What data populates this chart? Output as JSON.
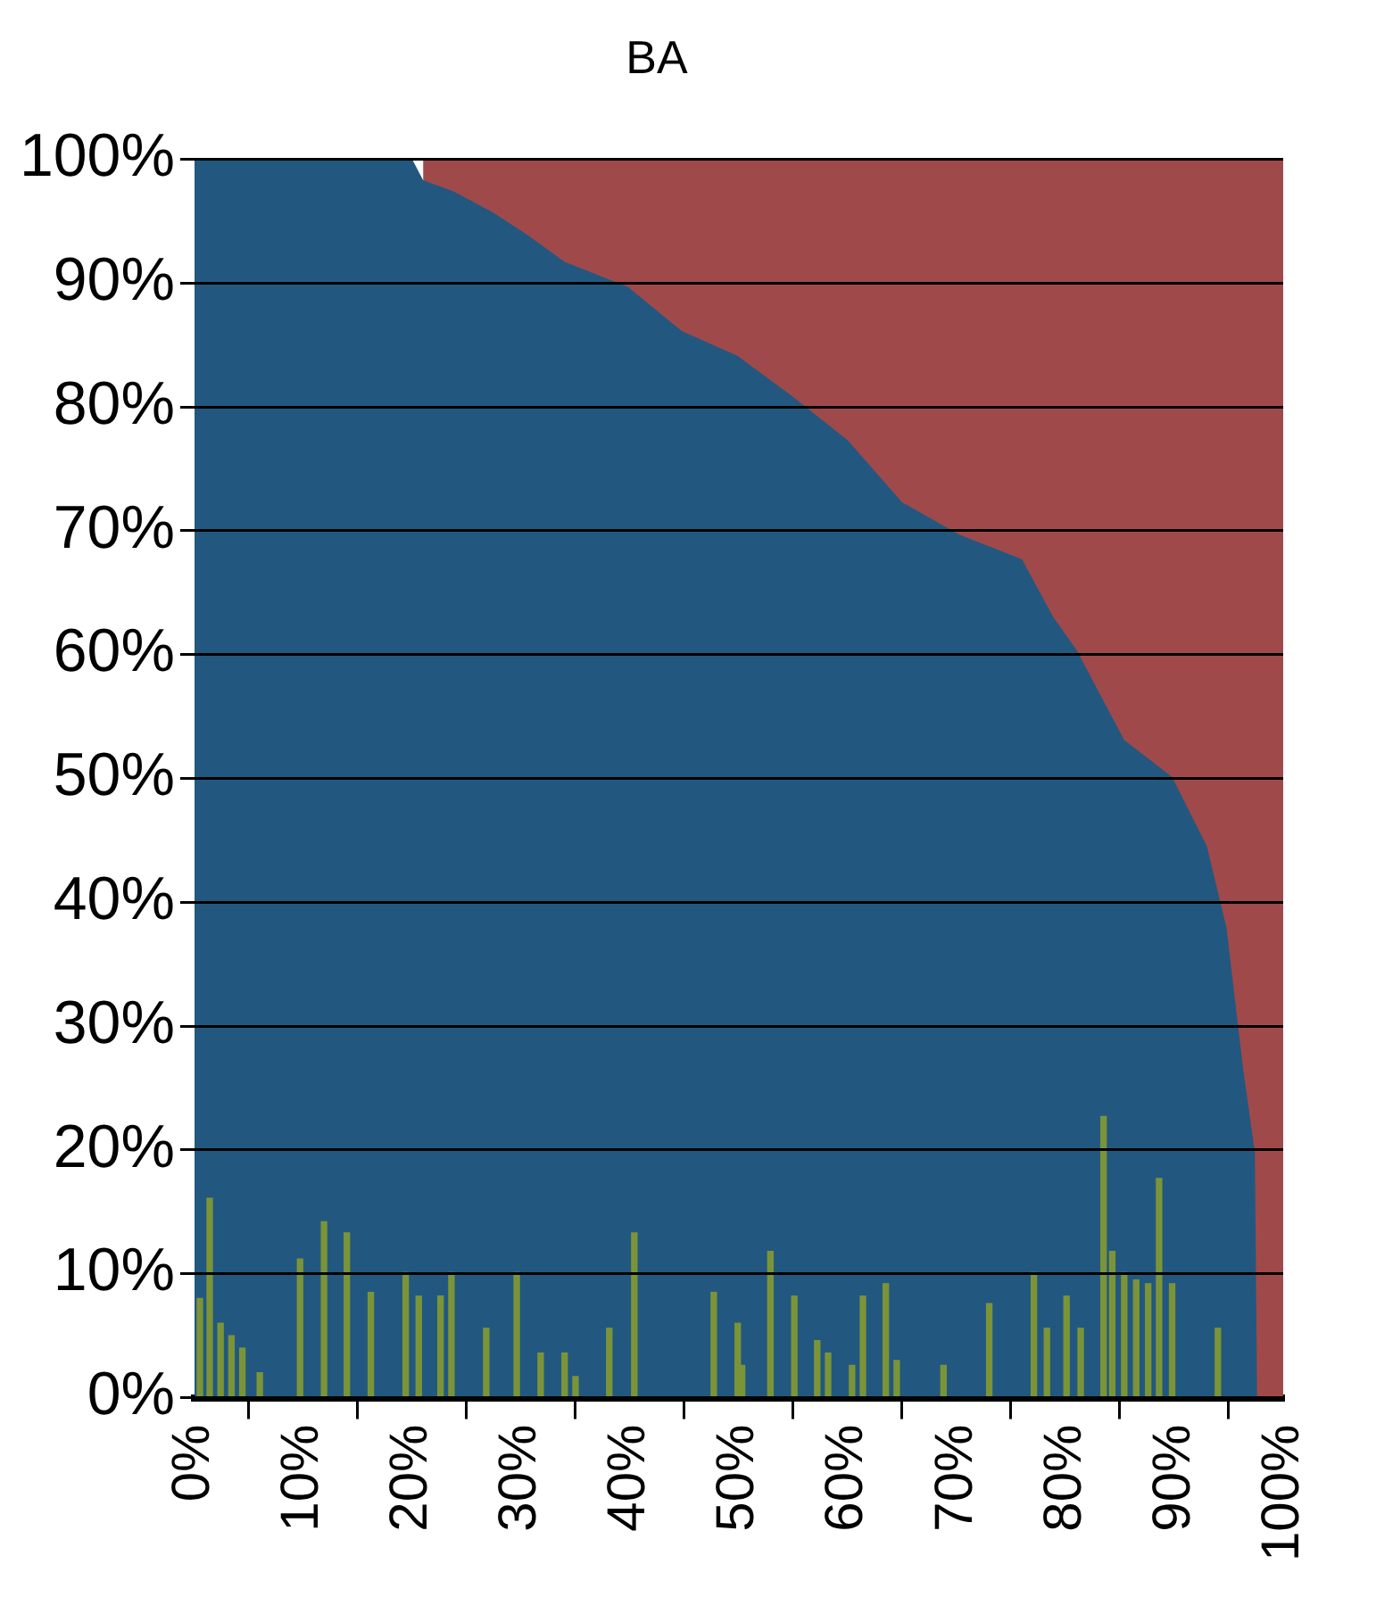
{
  "chart_data": {
    "type": "area",
    "title": "BA",
    "grid": true,
    "legend": false,
    "xlim": [
      0,
      100
    ],
    "xticks": [
      {
        "value": 0,
        "label": "0%"
      },
      {
        "value": 10,
        "label": "10%"
      },
      {
        "value": 20,
        "label": "20%"
      },
      {
        "value": 30,
        "label": "30%"
      },
      {
        "value": 40,
        "label": "40%"
      },
      {
        "value": 50,
        "label": "50%"
      },
      {
        "value": 60,
        "label": "60%"
      },
      {
        "value": 70,
        "label": "70%"
      },
      {
        "value": 80,
        "label": "80%"
      },
      {
        "value": 90,
        "label": "90%"
      },
      {
        "value": 100,
        "label": "100%"
      }
    ],
    "ylim": [
      0,
      100
    ],
    "yticks": [
      {
        "value": 0,
        "label": "0%"
      },
      {
        "value": 10,
        "label": "10%"
      },
      {
        "value": 20,
        "label": "20%"
      },
      {
        "value": 30,
        "label": "30%"
      },
      {
        "value": 40,
        "label": "40%"
      },
      {
        "value": 50,
        "label": "50%"
      },
      {
        "value": 60,
        "label": "60%"
      },
      {
        "value": 70,
        "label": "70%"
      },
      {
        "value": 80,
        "label": "80%"
      },
      {
        "value": 90,
        "label": "90%"
      },
      {
        "value": 100,
        "label": "100%"
      }
    ],
    "series": [
      {
        "color": "#22587f",
        "x": [
          0,
          20,
          21,
          23.8,
          27.4,
          30.4,
          34,
          39.8,
          44.8,
          49.9,
          55,
          60,
          65,
          70.2,
          76,
          78.9,
          81,
          85.4,
          89.8,
          93,
          94.8,
          96.3,
          97.4,
          97.6,
          100
        ],
        "values": [
          100,
          100,
          98.3,
          97.4,
          95.7,
          94,
          91.7,
          89.7,
          86.1,
          84.1,
          80.8,
          77.3,
          72.3,
          69.7,
          67.7,
          63,
          60.4,
          53.1,
          50.1,
          44.5,
          37.9,
          26.7,
          19.8,
          0,
          0
        ]
      },
      {
        "color": "#a0494b",
        "x": [
          21,
          23.8,
          27.4,
          30.4,
          34,
          39.8,
          44.8,
          49.9,
          55,
          60,
          65,
          70.2,
          76,
          78.9,
          81,
          85.4,
          89.8,
          93,
          94.8,
          96.3,
          97.4,
          97.6,
          100
        ],
        "values": [
          100,
          100,
          100,
          100,
          100,
          100,
          100,
          100,
          100,
          100,
          100,
          100,
          100,
          100,
          100,
          100,
          100,
          100,
          100,
          100,
          100,
          100,
          100
        ]
      },
      {
        "type": "bar",
        "color": "#7c9438",
        "x": [
          0.5,
          1.4,
          2.4,
          3.4,
          4.4,
          6,
          9.7,
          11.9,
          14,
          16.2,
          19.4,
          20.6,
          22.6,
          23.6,
          26.8,
          29.6,
          31.8,
          34,
          35,
          38.1,
          40.4,
          47.7,
          49.9,
          50.3,
          52.9,
          55.1,
          57.2,
          58.2,
          60.4,
          61.4,
          63.5,
          64.5,
          68.8,
          73,
          77.1,
          78.3,
          80.1,
          81.4,
          83.5,
          84.3,
          85.4,
          86.5,
          87.6,
          88.6,
          89.8,
          94
        ],
        "values": [
          8,
          16.1,
          6,
          5,
          4,
          2,
          11.2,
          14.2,
          13.3,
          8.5,
          10.1,
          8.2,
          8.2,
          10.1,
          5.6,
          10.1,
          3.6,
          3.6,
          1.7,
          5.6,
          13.3,
          8.5,
          6,
          2.6,
          11.8,
          8.2,
          4.6,
          3.6,
          2.6,
          8.2,
          9.2,
          3,
          2.6,
          7.6,
          10.1,
          5.6,
          8.2,
          5.6,
          22.7,
          11.8,
          10.1,
          9.5,
          9.2,
          17.7,
          9.2,
          5.6
        ]
      }
    ]
  }
}
